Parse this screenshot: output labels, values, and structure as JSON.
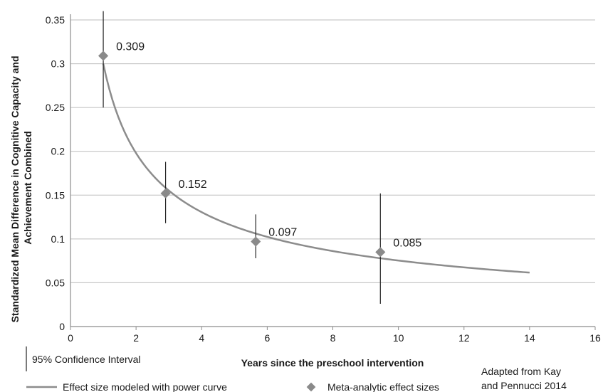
{
  "chart_data": {
    "type": "scatter",
    "xlabel": "Years since the preschool intervention",
    "ylabel_lines": [
      "Standardized Mean Difference in Cognitive Capacity and",
      "Achievement Combined"
    ],
    "xlim": [
      0,
      16
    ],
    "ylim": [
      0,
      0.35
    ],
    "x_ticks": [
      0,
      2,
      4,
      6,
      8,
      10,
      12,
      14,
      16
    ],
    "y_ticks": [
      0,
      0.05,
      0.1,
      0.15,
      0.2,
      0.25,
      0.3,
      0.35
    ],
    "x_tick_labels": [
      "0",
      "2",
      "4",
      "6",
      "8",
      "10",
      "12",
      "14",
      "16"
    ],
    "y_tick_labels": [
      "0",
      "0.05",
      "0.1",
      "0.15",
      "0.2",
      "0.25",
      "0.3",
      "0.35"
    ],
    "grid": "horizontal",
    "points": [
      {
        "x": 1.0,
        "y": 0.309,
        "ci_low": 0.25,
        "ci_high": 0.36,
        "label": "0.309"
      },
      {
        "x": 2.9,
        "y": 0.152,
        "ci_low": 0.118,
        "ci_high": 0.188,
        "label": "0.152"
      },
      {
        "x": 5.65,
        "y": 0.097,
        "ci_low": 0.078,
        "ci_high": 0.128,
        "label": "0.097"
      },
      {
        "x": 9.45,
        "y": 0.085,
        "ci_low": 0.026,
        "ci_high": 0.152,
        "label": "0.085"
      }
    ],
    "curve": {
      "model": "power",
      "coefficient": 0.3,
      "exponent": -0.6,
      "x_range": [
        1,
        14
      ]
    },
    "legend": {
      "ci_label": "95% Confidence Interval",
      "curve_label": "Effect size modeled with power curve",
      "points_label": "Meta-analytic effect sizes"
    },
    "source_note_lines": [
      "Adapted from Kay",
      "and Pennucci 2014"
    ],
    "colors": {
      "curve": "#8c8c8c",
      "marker": "#8a8a8a",
      "error_bar": "#222222",
      "grid": "#bdbdbd",
      "axis": "#8c8c8c"
    }
  }
}
